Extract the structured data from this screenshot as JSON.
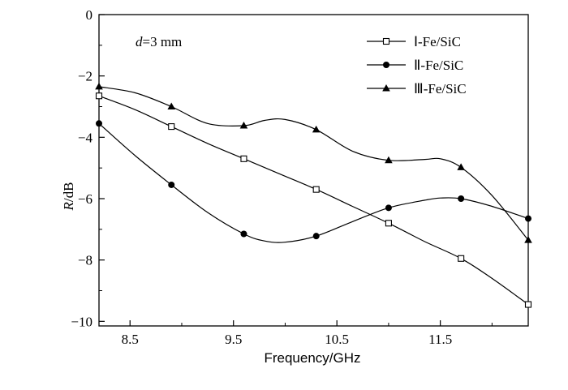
{
  "chart_data": {
    "type": "line",
    "title": "",
    "annotation": {
      "var": "d",
      "rest": "=3 mm"
    },
    "xlabel": "Frequency/GHz",
    "ylabel": {
      "var": "R",
      "unit": "/dB"
    },
    "xlim": [
      8.2,
      12.35
    ],
    "ylim": [
      -10.15,
      0
    ],
    "xticks": [
      8.5,
      9.5,
      10.5,
      11.5
    ],
    "xtick_labels": [
      "8.5",
      "9.5",
      "10.5",
      "11.5"
    ],
    "yticks": [
      0,
      -2,
      -4,
      -6,
      -8,
      -10
    ],
    "ytick_labels": [
      "0",
      "−2",
      "−4",
      "−6",
      "−8",
      "−10"
    ],
    "grid": false,
    "legend_position": "top-right",
    "x": [
      8.2,
      8.9,
      9.6,
      10.3,
      11.0,
      11.7,
      12.35
    ],
    "series": [
      {
        "name": "Ⅰ-Fe/SiC",
        "marker": "square-open",
        "values": [
          -2.65,
          -3.65,
          -4.7,
          -5.7,
          -6.8,
          -7.95,
          -9.45
        ],
        "curve": [
          [
            8.2,
            -2.65
          ],
          [
            8.55,
            -3.1
          ],
          [
            8.9,
            -3.65
          ],
          [
            9.25,
            -4.2
          ],
          [
            9.6,
            -4.7
          ],
          [
            9.95,
            -5.2
          ],
          [
            10.3,
            -5.7
          ],
          [
            10.65,
            -6.25
          ],
          [
            11.0,
            -6.8
          ],
          [
            11.35,
            -7.4
          ],
          [
            11.7,
            -7.95
          ],
          [
            12.0,
            -8.6
          ],
          [
            12.35,
            -9.45
          ]
        ]
      },
      {
        "name": "Ⅱ-Fe/SiC",
        "marker": "circle-filled",
        "values": [
          -3.55,
          -5.55,
          -7.15,
          -7.22,
          -6.3,
          -6.0,
          -6.65
        ],
        "curve": [
          [
            8.2,
            -3.55
          ],
          [
            8.55,
            -4.6
          ],
          [
            8.9,
            -5.55
          ],
          [
            9.25,
            -6.45
          ],
          [
            9.6,
            -7.15
          ],
          [
            9.8,
            -7.38
          ],
          [
            10.0,
            -7.42
          ],
          [
            10.3,
            -7.22
          ],
          [
            10.65,
            -6.75
          ],
          [
            11.0,
            -6.3
          ],
          [
            11.35,
            -6.05
          ],
          [
            11.5,
            -5.98
          ],
          [
            11.7,
            -6.0
          ],
          [
            12.0,
            -6.25
          ],
          [
            12.35,
            -6.65
          ]
        ]
      },
      {
        "name": "Ⅲ-Fe/SiC",
        "marker": "triangle-filled",
        "values": [
          -2.35,
          -3.0,
          -3.62,
          -3.75,
          -4.75,
          -4.98,
          -7.35
        ],
        "curve": [
          [
            8.2,
            -2.35
          ],
          [
            8.55,
            -2.55
          ],
          [
            8.9,
            -3.0
          ],
          [
            9.25,
            -3.55
          ],
          [
            9.6,
            -3.62
          ],
          [
            9.8,
            -3.45
          ],
          [
            10.0,
            -3.42
          ],
          [
            10.3,
            -3.75
          ],
          [
            10.65,
            -4.45
          ],
          [
            11.0,
            -4.75
          ],
          [
            11.35,
            -4.72
          ],
          [
            11.5,
            -4.7
          ],
          [
            11.7,
            -4.98
          ],
          [
            12.0,
            -5.9
          ],
          [
            12.35,
            -7.35
          ]
        ]
      }
    ]
  }
}
